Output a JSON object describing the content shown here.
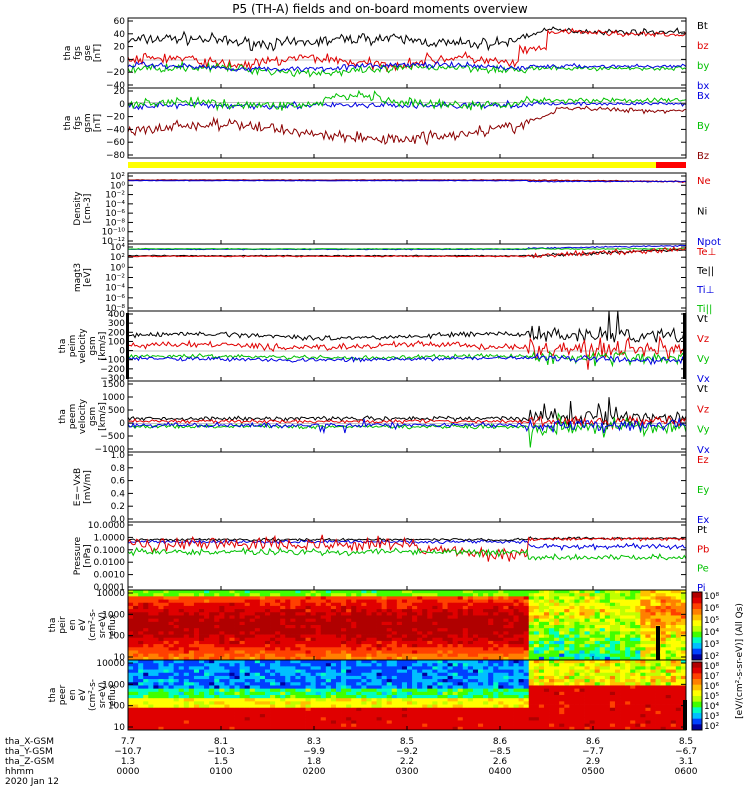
{
  "title": "P5 (TH-A) fields and on-board moments overview",
  "panels": [
    {
      "id": "fgs-gse",
      "ylabel": [
        "tha",
        "fgs",
        "gse",
        "[nT]"
      ],
      "ticks": [
        "60",
        "40",
        "20",
        "0",
        "−20",
        "−40"
      ],
      "legend": [
        {
          "t": "Bt",
          "c": "#000000"
        },
        {
          "t": "bz",
          "c": "#e00000"
        },
        {
          "t": "by",
          "c": "#00c000"
        },
        {
          "t": "bx",
          "c": "#0000e0"
        }
      ]
    },
    {
      "id": "fgs-gsm",
      "ylabel": [
        "tha",
        "fgs",
        "gsm",
        "[nT]"
      ],
      "ticks": [
        "20",
        "0",
        "−20",
        "−40",
        "−60",
        "−80"
      ],
      "legend": [
        {
          "t": "Bx",
          "c": "#0000e0"
        },
        {
          "t": "By",
          "c": "#00c000"
        },
        {
          "t": "Bz",
          "c": "#8b0000"
        }
      ]
    },
    {
      "id": "density",
      "ylabel": [
        "Density",
        "[cm-3]"
      ],
      "ticks": [
        "10²",
        "10⁰",
        "10⁻²",
        "10⁻⁴",
        "10⁻⁶",
        "10⁻⁸",
        "10⁻¹⁰",
        "10⁻¹²"
      ],
      "legend": [
        {
          "t": "Ne",
          "c": "#e00000"
        },
        {
          "t": "Ni",
          "c": "#000000"
        },
        {
          "t": "Npot",
          "c": "#0000e0"
        }
      ]
    },
    {
      "id": "temp",
      "ylabel": [
        "magt3",
        "[eV]"
      ],
      "ticks": [
        "10⁴",
        "10²",
        "10⁰",
        "10⁻²",
        "10⁻⁴",
        "10⁻⁶",
        "10⁻⁸"
      ],
      "legend": [
        {
          "t": "Te⊥",
          "c": "#e00000"
        },
        {
          "t": "Te||",
          "c": "#000000"
        },
        {
          "t": "Ti⊥",
          "c": "#0000e0"
        },
        {
          "t": "Ti||",
          "c": "#00c000"
        }
      ]
    },
    {
      "id": "peim",
      "ylabel": [
        "tha",
        "peim",
        "velocity",
        "gsm",
        "[km/s]"
      ],
      "ticks": [
        "400",
        "300",
        "200",
        "100",
        "0",
        "−100",
        "−200",
        "−300"
      ],
      "legend": [
        {
          "t": "Vt",
          "c": "#000000"
        },
        {
          "t": "Vz",
          "c": "#e00000"
        },
        {
          "t": "Vy",
          "c": "#00c000"
        },
        {
          "t": "Vx",
          "c": "#0000e0"
        }
      ]
    },
    {
      "id": "peem",
      "ylabel": [
        "tha",
        "peem",
        "velocity",
        "gsm",
        "[km/s]"
      ],
      "ticks": [
        "1500",
        "1000",
        "500",
        "0",
        "−500",
        "−1000"
      ],
      "legend": [
        {
          "t": "Vt",
          "c": "#000000"
        },
        {
          "t": "Vz",
          "c": "#e00000"
        },
        {
          "t": "Vy",
          "c": "#00c000"
        },
        {
          "t": "Vx",
          "c": "#0000e0"
        }
      ]
    },
    {
      "id": "efield",
      "ylabel": [
        "E=−VxB",
        "[mV/m]"
      ],
      "ticks": [
        "1.0",
        "0.8",
        "0.6",
        "0.4",
        "0.2",
        "0.0"
      ],
      "legend": [
        {
          "t": "Ez",
          "c": "#e00000"
        },
        {
          "t": "Ey",
          "c": "#00c000"
        },
        {
          "t": "Ex",
          "c": "#0000e0"
        }
      ]
    },
    {
      "id": "pressure",
      "ylabel": [
        "Pressure",
        "[nPa]"
      ],
      "ticks": [
        "10.0000",
        "1.0000",
        "0.1000",
        "0.0100",
        "0.0010",
        "0.0001"
      ],
      "legend": [
        {
          "t": "Pt",
          "c": "#000000"
        },
        {
          "t": "Pb",
          "c": "#e00000"
        },
        {
          "t": "Pe",
          "c": "#00c000"
        },
        {
          "t": "Pi",
          "c": "#0000e0"
        }
      ]
    },
    {
      "id": "peir",
      "ylabel": [
        "tha",
        "peir",
        "en",
        "eV",
        "(cm²-s-",
        "sr-eV)",
        "eflux"
      ],
      "ticks": [
        "10000",
        "1000",
        "100",
        "10"
      ],
      "legend": []
    },
    {
      "id": "peer",
      "ylabel": [
        "tha",
        "peer",
        "en",
        "eV",
        "(cm²-s-",
        "sr-eV)",
        "eflux"
      ],
      "ticks": [
        "10000",
        "1000",
        "100",
        "10"
      ],
      "legend": []
    }
  ],
  "colorbar": {
    "label": "[eV/(cm²-s-sr-eV)] (All Qs)",
    "ticks_peir": [
      "10⁸",
      "10⁶",
      "10⁵",
      "10⁴",
      "10³",
      "10²"
    ],
    "ticks_peer": [
      "10⁸",
      "10⁷",
      "10⁶",
      "10⁵",
      "10⁴",
      "10³",
      "10²"
    ]
  },
  "xaxis": {
    "row_labels": [
      "tha_X-GSM",
      "tha_Y-GSM",
      "tha_Z-GSM",
      "hhmm",
      "2020 Jan 12"
    ],
    "x_gsm": [
      "7.7",
      "8.1",
      "8.3",
      "8.5",
      "8.6",
      "8.6",
      "8.5"
    ],
    "y_gsm": [
      "−10.7",
      "−10.3",
      "−9.9",
      "−9.2",
      "−8.5",
      "−7.7",
      "−6.7"
    ],
    "z_gsm": [
      "1.3",
      "1.5",
      "1.8",
      "2.2",
      "2.6",
      "2.9",
      "3.1"
    ],
    "hhmm": [
      "0000",
      "0100",
      "0200",
      "0300",
      "0400",
      "0500",
      "0600"
    ]
  },
  "chart_data": {
    "type": "line",
    "title": "P5 (TH-A) fields and on-board moments overview",
    "x_unit": "UT hours 2020 Jan 12",
    "xlim": [
      0,
      6
    ],
    "series_summary": [
      {
        "panel": "fgs-gse",
        "name": "Bt",
        "approx": "≈30 nT until 04:00, ≈40 nT after"
      },
      {
        "panel": "fgs-gse",
        "name": "bz",
        "approx": "≈0 nT until 04:00, rising to ≈40 nT after"
      },
      {
        "panel": "fgs-gsm",
        "name": "Bz",
        "approx": "≈−45 nT before 04:00, ≈−10 nT after"
      },
      {
        "panel": "peim",
        "name": "Vt",
        "approx": "≈150 km/s, spiky after 04:20"
      },
      {
        "panel": "peem",
        "name": "Vt",
        "approx": "≈150 km/s, spiky to ~1000 km/s 04:20–05:30"
      },
      {
        "panel": "pressure",
        "name": "Pt",
        "approx": "≈0.5–1 nPa"
      }
    ]
  }
}
